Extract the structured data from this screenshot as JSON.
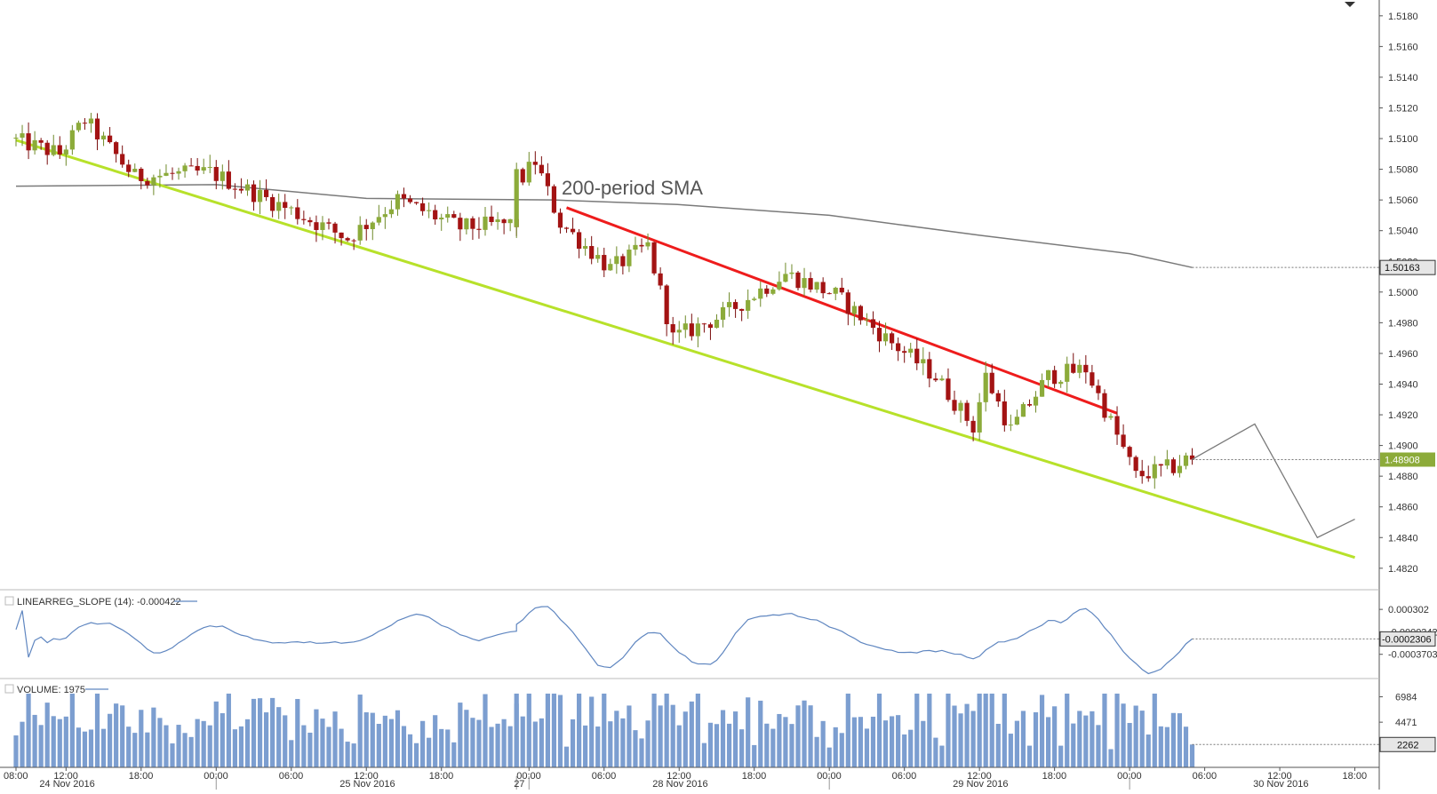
{
  "colors": {
    "bull": "#8cab3a",
    "bear": "#a31313",
    "channel_lower": "#b7e12a",
    "channel_upper": "#ee1c1c",
    "sma": "#7a7a7a",
    "projection": "#7a7a7a",
    "slope_line": "#5f86c0",
    "volume_bar": "#7c9ed0",
    "price_tag_bull": "#8cab3a"
  },
  "chart_data": {
    "type": "candlestick",
    "price_axis": {
      "ylim": [
        1.4806,
        1.5188
      ],
      "ticks": [
        "1.5180",
        "1.5160",
        "1.5140",
        "1.5120",
        "1.5100",
        "1.5080",
        "1.5060",
        "1.5040",
        "1.5020",
        "1.5000",
        "1.4980",
        "1.4960",
        "1.4940",
        "1.4920",
        "1.4900",
        "1.4880",
        "1.4860",
        "1.4840",
        "1.4820"
      ],
      "current_price_tag": "1.48908",
      "sma_price_tag": "1.50163"
    },
    "annotation_text": "200-period SMA",
    "price_anchors": [
      [
        "2016-11-24 08:00",
        1.51
      ],
      [
        "2016-11-24 12:00",
        1.509
      ],
      [
        "2016-11-24 14:00",
        1.5112
      ],
      [
        "2016-11-24 18:00",
        1.5075
      ],
      [
        "2016-11-25 00:00",
        1.5078
      ],
      [
        "2016-11-25 06:00",
        1.5055
      ],
      [
        "2016-11-25 11:00",
        1.5035
      ],
      [
        "2016-11-25 15:00",
        1.506
      ],
      [
        "2016-11-25 20:00",
        1.5042
      ],
      [
        "2016-11-28 00:00",
        1.5075
      ],
      [
        "2016-11-28 01:00",
        1.5085
      ],
      [
        "2016-11-28 03:00",
        1.5045
      ],
      [
        "2016-11-28 07:00",
        1.5015
      ],
      [
        "2016-11-28 10:00",
        1.503
      ],
      [
        "2016-11-28 12:00",
        1.497
      ],
      [
        "2016-11-28 16:00",
        1.4985
      ],
      [
        "2016-11-28 21:00",
        1.5012
      ],
      [
        "2016-11-29 01:00",
        1.4998
      ],
      [
        "2016-11-29 05:00",
        1.497
      ],
      [
        "2016-11-29 09:00",
        1.4945
      ],
      [
        "2016-11-29 12:00",
        1.4912
      ],
      [
        "2016-11-29 13:00",
        1.4945
      ],
      [
        "2016-11-29 15:00",
        1.491
      ],
      [
        "2016-11-29 18:00",
        1.4945
      ],
      [
        "2016-11-29 21:00",
        1.495
      ],
      [
        "2016-11-30 01:00",
        1.488
      ],
      [
        "2016-11-30 04:00",
        1.4886
      ],
      [
        "2016-11-30 05:00",
        1.4891
      ]
    ],
    "sma_200": [
      [
        "2016-11-24 08:00",
        1.5069
      ],
      [
        "2016-11-25 00:00",
        1.507
      ],
      [
        "2016-11-25 12:00",
        1.5061
      ],
      [
        "2016-11-28 02:00",
        1.506
      ],
      [
        "2016-11-28 12:00",
        1.5057
      ],
      [
        "2016-11-29 00:00",
        1.505
      ],
      [
        "2016-11-29 12:00",
        1.5037
      ],
      [
        "2016-11-30 00:00",
        1.5025
      ],
      [
        "2016-11-30 05:00",
        1.5016
      ]
    ],
    "channel_lower": [
      [
        "2016-11-24 08:00",
        1.5099
      ],
      [
        "2016-11-30 18:00",
        1.4827
      ]
    ],
    "channel_upper": [
      [
        "2016-11-28 03:00",
        1.5055
      ],
      [
        "2016-11-29 23:00",
        1.4921
      ]
    ],
    "forecast_path": [
      [
        "2016-11-30 05:00",
        1.4891
      ],
      [
        "2016-11-30 10:00",
        1.4914
      ],
      [
        "2016-11-30 15:00",
        1.484
      ],
      [
        "2016-11-30 18:00",
        1.4852
      ]
    ],
    "slope_indicator": {
      "label": "LINEARREG_SLOPE (14): -0.000422",
      "ticks": [
        "0.000302",
        "-0.0000342",
        "-0.0003703"
      ],
      "current_tag": "-0.0002306"
    },
    "volume_indicator": {
      "label": "VOLUME: 1975",
      "ticks": [
        "6984",
        "4471"
      ],
      "current_tag": "2262"
    },
    "time_axis": {
      "tick_labels": [
        {
          "text": "08:00",
          "t": "2016-11-24 08:00"
        },
        {
          "text": "12:00",
          "t": "2016-11-24 12:00"
        },
        {
          "text": "18:00",
          "t": "2016-11-24 18:00"
        },
        {
          "text": "00:00",
          "t": "2016-11-25 00:00"
        },
        {
          "text": "06:00",
          "t": "2016-11-25 06:00"
        },
        {
          "text": "12:00",
          "t": "2016-11-25 12:00"
        },
        {
          "text": "18:00",
          "t": "2016-11-25 18:00"
        },
        {
          "text": "00:00",
          "t": "2016-11-28 00:00"
        },
        {
          "text": "06:00",
          "t": "2016-11-28 06:00"
        },
        {
          "text": "12:00",
          "t": "2016-11-28 12:00"
        },
        {
          "text": "18:00",
          "t": "2016-11-28 18:00"
        },
        {
          "text": "00:00",
          "t": "2016-11-29 00:00"
        },
        {
          "text": "06:00",
          "t": "2016-11-29 06:00"
        },
        {
          "text": "12:00",
          "t": "2016-11-29 12:00"
        },
        {
          "text": "18:00",
          "t": "2016-11-29 18:00"
        },
        {
          "text": "00:00",
          "t": "2016-11-30 00:00"
        },
        {
          "text": "06:00",
          "t": "2016-11-30 06:00"
        },
        {
          "text": "12:00",
          "t": "2016-11-30 12:00"
        },
        {
          "text": "18:00",
          "t": "2016-11-30 18:00"
        }
      ],
      "date_labels": [
        {
          "text": "24 Nov 2016",
          "t": "2016-11-24 12:00"
        },
        {
          "text": "25 Nov 2016",
          "t": "2016-11-25 12:00"
        },
        {
          "text": "27",
          "t": "2016-11-27 23:00"
        },
        {
          "text": "28 Nov 2016",
          "t": "2016-11-28 12:00"
        },
        {
          "text": "29 Nov 2016",
          "t": "2016-11-29 12:00"
        },
        {
          "text": "30 Nov 2016",
          "t": "2016-11-30 12:00"
        }
      ],
      "date_separators": [
        "2016-11-25 00:00",
        "2016-11-27 23:00",
        "2016-11-28 00:00",
        "2016-11-29 00:00",
        "2016-11-30 00:00",
        "2016-12-01 00:00"
      ]
    }
  }
}
